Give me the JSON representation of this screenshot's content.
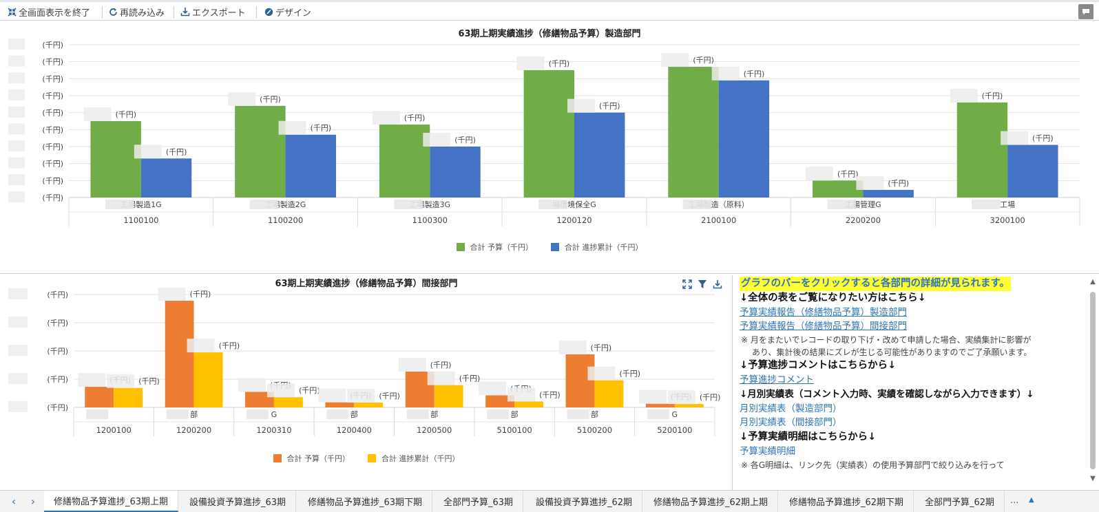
{
  "toolbar": {
    "exit_fullscreen": "全画面表示を終了",
    "reload": "再読み込み",
    "export": "エクスポート",
    "design": "デザイン"
  },
  "unit": "(千円)",
  "colors": {
    "green": "#70ad47",
    "blue": "#4472c4",
    "orange": "#ed7d31",
    "gold": "#ffc000"
  },
  "chart_data": [
    {
      "type": "bar",
      "title": "63期上期実績進捗（修繕物品予算）製造部門",
      "categories": [
        "1100100",
        "1100200",
        "1100300",
        "1200120",
        "2100100",
        "2200200",
        "3200100"
      ],
      "category_names": [
        "工場製造1G",
        "工場製造2G",
        "工場製造3G",
        "場環境保全G",
        "工場製造（原料）",
        "工場管理G",
        "工場"
      ],
      "series": [
        {
          "name": "合計 予算（千円）",
          "values": [
            4.5,
            5.4,
            4.3,
            7.5,
            7.7,
            1.0,
            5.6
          ]
        },
        {
          "name": "合計 進捗累計（千円）",
          "values": [
            2.3,
            3.7,
            3.0,
            5.0,
            6.9,
            0.45,
            3.1
          ]
        }
      ],
      "ylim": [
        0,
        9
      ],
      "legend": "bottom"
    },
    {
      "type": "bar",
      "title": "63期上期実績進捗（修繕物品予算）間接部門",
      "categories": [
        "1200100",
        "1200200",
        "1200310",
        "1200400",
        "1200500",
        "5100100",
        "5100200",
        "5200100"
      ],
      "category_names": [
        "",
        "部",
        "G",
        "部",
        "部",
        "部",
        "部",
        "G"
      ],
      "series": [
        {
          "name": "合計 予算（千円）",
          "values": [
            0.73,
            3.78,
            0.55,
            0.18,
            1.27,
            0.43,
            1.88,
            0.13
          ]
        },
        {
          "name": "合計 進捗累計（千円）",
          "values": [
            0.69,
            1.95,
            0.36,
            0.17,
            0.79,
            0.21,
            0.96,
            0.12
          ]
        }
      ],
      "ylim": [
        0,
        4
      ],
      "legend": "bottom"
    }
  ],
  "info": {
    "highlight": "グラフのバーをクリックすると各部門の詳細が見られます。",
    "head1": "↓全体の表をご覧になりたい方はこちら↓",
    "link1": "予算実績報告（修繕物品予算）製造部門",
    "link2": "予算実績報告（修繕物品予算）間接部門",
    "note1a": "※ 月をまたいでレコードの取り下げ・改めて申請した場合、実績集計に影響が",
    "note1b": "あり、集計後の結果にズレが生じる可能性がありますのでご了承願います。",
    "head2": "↓予算進捗コメントはこちらから↓",
    "link3": "予算進捗コメント",
    "head3": "↓月別実績表（コメント入力時、実績を確認しながら入力できます）↓",
    "link4": "月別実績表（製造部門）",
    "link5": "月別実績表（間接部門）",
    "head4": "↓予算実績明細はこちらから↓",
    "link6": "予算実績明細",
    "note2": "※ 各G明細は、リンク先（実績表）の使用予算部門で絞り込みを行って"
  },
  "tabs": [
    "修繕物品予算進捗_63期上期",
    "設備投資予算進捗_63期",
    "修繕物品予算進捗_63期下期",
    "全部門予算_63期",
    "設備投資予算進捗_62期",
    "修繕物品予算進捗_62期上期",
    "修繕物品予算進捗_62期下期",
    "全部門予算_62期"
  ],
  "tab_more": "..."
}
